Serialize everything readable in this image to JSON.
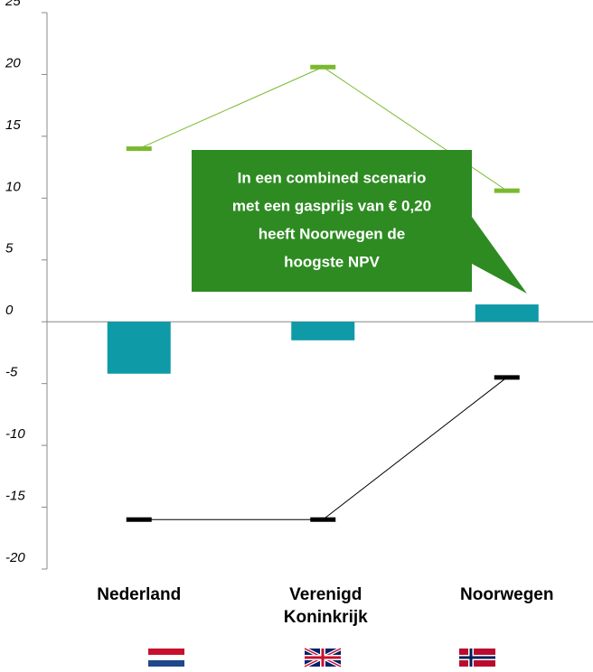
{
  "chart_data": {
    "type": "combo",
    "categories": [
      "Nederland",
      "Verenigd Koninkrijk",
      "Noorwegen"
    ],
    "ylim": [
      -20,
      25
    ],
    "yticks": [
      -20,
      -15,
      -10,
      -5,
      0,
      5,
      10,
      15,
      20,
      25
    ],
    "series": [
      {
        "type": "bar",
        "color": "#0e9aa7",
        "values": [
          -4.2,
          -1.5,
          1.4
        ]
      },
      {
        "type": "line",
        "color": "#7ab92f",
        "values": [
          14,
          20.6,
          10.6
        ]
      },
      {
        "type": "line",
        "color": "#000000",
        "values": [
          -16,
          -16,
          -4.5
        ]
      }
    ],
    "annotation": {
      "lines": [
        "In een combined scenario",
        "met een gasprijs van € 0,20",
        "heeft Noorwegen de",
        "hoogste NPV"
      ],
      "color": "#2e8b22"
    }
  }
}
